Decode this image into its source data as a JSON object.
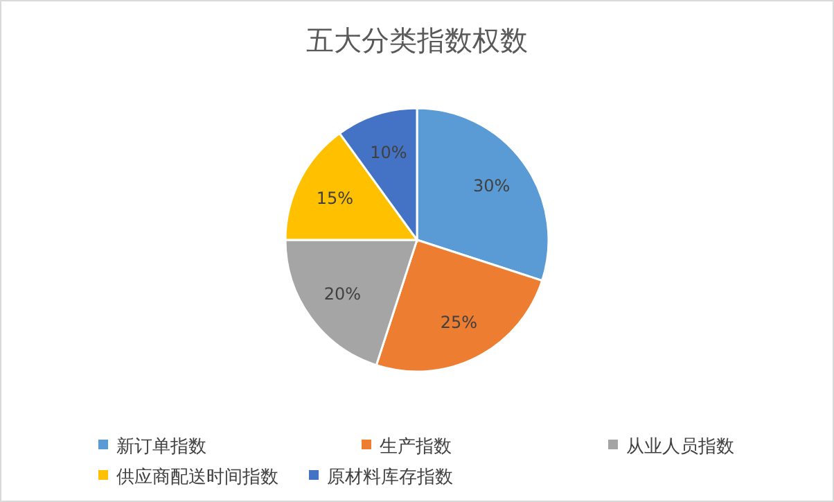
{
  "chart_data": {
    "type": "pie",
    "title": "五大分类指数权数",
    "categories": [
      "新订单指数",
      "生产指数",
      "从业人员指数",
      "供应商配送时间指数",
      "原材料库存指数"
    ],
    "values": [
      30,
      25,
      20,
      15,
      10
    ],
    "colors": [
      "#5b9bd5",
      "#ed7d31",
      "#a5a5a5",
      "#ffc000",
      "#4472c4"
    ],
    "value_labels": [
      "30%",
      "25%",
      "20%",
      "15%",
      "10%"
    ],
    "legend": "bottom"
  }
}
